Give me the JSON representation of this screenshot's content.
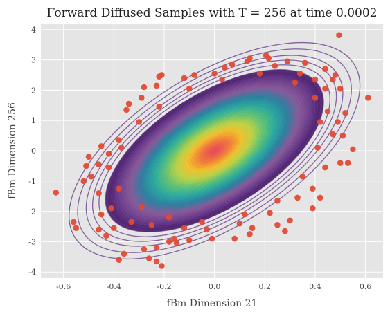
{
  "chart_data": {
    "type": "scatter",
    "title": "Forward Diffused Samples with T = 256 at time 0.0002",
    "xlabel": "fBm Dimension 21",
    "ylabel": "fBm Dimension 256",
    "xlim": [
      -0.69,
      0.67
    ],
    "ylim": [
      -4.2,
      4.2
    ],
    "xticks": [
      "-0.6",
      "-0.4",
      "-0.2",
      "0.0",
      "0.2",
      "0.4",
      "0.6"
    ],
    "xtick_values": [
      -0.6,
      -0.4,
      -0.2,
      0.0,
      0.2,
      0.4,
      0.6
    ],
    "yticks": [
      "-4",
      "-3",
      "-2",
      "-1",
      "0",
      "1",
      "2",
      "3",
      "4"
    ],
    "ytick_values": [
      -4,
      -3,
      -2,
      -1,
      0,
      1,
      2,
      3,
      4
    ],
    "grid": true,
    "background": "#e5e5e5",
    "point_color": "#e24a33",
    "density_center": [
      0.0,
      0.0
    ],
    "density_sx": 0.17,
    "density_sy": 1.05,
    "density_corr": 0.6,
    "colormap": [
      "#4a1e6c",
      "#6b3f8c",
      "#8c5a9a",
      "#2f7fa0",
      "#2aa7a0",
      "#5cc17a",
      "#b8d14a",
      "#f2c12e",
      "#f07c3a",
      "#e94e5a"
    ],
    "points": [
      [
        0.495,
        3.82
      ],
      [
        0.205,
        3.15
      ],
      [
        0.215,
        3.05
      ],
      [
        0.29,
        2.95
      ],
      [
        0.47,
        2.35
      ],
      [
        0.5,
        2.05
      ],
      [
        0.61,
        1.75
      ],
      [
        0.52,
        1.25
      ],
      [
        0.49,
        0.95
      ],
      [
        0.55,
        0.05
      ],
      [
        0.53,
        -0.4
      ],
      [
        0.5,
        -0.4
      ],
      [
        0.39,
        -1.25
      ],
      [
        0.42,
        -1.55
      ],
      [
        0.39,
        -1.9
      ],
      [
        0.3,
        -2.3
      ],
      [
        0.25,
        -2.45
      ],
      [
        0.15,
        -2.55
      ],
      [
        0.14,
        -2.75
      ],
      [
        0.08,
        -2.9
      ],
      [
        -0.01,
        -2.9
      ],
      [
        -0.1,
        -2.95
      ],
      [
        -0.16,
        -2.9
      ],
      [
        -0.18,
        -3.0
      ],
      [
        -0.23,
        -3.2
      ],
      [
        -0.28,
        -3.25
      ],
      [
        -0.26,
        -3.55
      ],
      [
        -0.23,
        -3.65
      ],
      [
        -0.21,
        -3.8
      ],
      [
        -0.38,
        -3.6
      ],
      [
        -0.36,
        -3.4
      ],
      [
        -0.43,
        -2.8
      ],
      [
        -0.4,
        -2.55
      ],
      [
        -0.46,
        -2.6
      ],
      [
        -0.56,
        -2.35
      ],
      [
        -0.55,
        -2.55
      ],
      [
        -0.63,
        -1.38
      ],
      [
        -0.51,
        -0.5
      ],
      [
        -0.5,
        -0.2
      ],
      [
        -0.45,
        0.15
      ],
      [
        -0.42,
        -0.1
      ],
      [
        -0.35,
        1.35
      ],
      [
        -0.34,
        1.55
      ],
      [
        -0.29,
        1.75
      ],
      [
        -0.23,
        2.15
      ],
      [
        -0.22,
        2.45
      ],
      [
        -0.21,
        2.5
      ],
      [
        -0.12,
        2.4
      ],
      [
        -0.08,
        2.5
      ],
      [
        0.0,
        2.55
      ],
      [
        0.04,
        2.75
      ],
      [
        0.07,
        2.85
      ],
      [
        0.14,
        3.05
      ],
      [
        0.24,
        2.8
      ],
      [
        0.34,
        2.55
      ],
      [
        0.4,
        2.35
      ],
      [
        0.44,
        2.05
      ],
      [
        0.45,
        1.3
      ],
      [
        0.47,
        0.55
      ],
      [
        0.44,
        -0.55
      ],
      [
        0.33,
        -1.55
      ],
      [
        0.22,
        -2.05
      ],
      [
        0.1,
        -2.4
      ],
      [
        -0.03,
        -2.6
      ],
      [
        -0.12,
        -2.55
      ],
      [
        -0.25,
        -2.45
      ],
      [
        -0.33,
        -2.35
      ],
      [
        -0.41,
        -1.9
      ],
      [
        -0.46,
        -1.4
      ],
      [
        -0.49,
        -0.85
      ],
      [
        -0.46,
        -0.45
      ],
      [
        -0.38,
        0.35
      ],
      [
        -0.3,
        0.95
      ],
      [
        -0.22,
        1.45
      ],
      [
        -0.1,
        2.05
      ],
      [
        0.03,
        2.35
      ],
      [
        0.18,
        2.55
      ],
      [
        0.32,
        2.25
      ],
      [
        0.4,
        1.75
      ],
      [
        0.42,
        0.95
      ],
      [
        0.41,
        0.1
      ],
      [
        0.35,
        -0.85
      ],
      [
        0.25,
        -1.65
      ],
      [
        0.12,
        -2.1
      ],
      [
        -0.05,
        -2.35
      ],
      [
        -0.18,
        -2.2
      ],
      [
        -0.29,
        -1.85
      ],
      [
        -0.38,
        -1.25
      ],
      [
        -0.42,
        -0.55
      ],
      [
        -0.37,
        0.1
      ],
      [
        0.44,
        2.7
      ],
      [
        0.48,
        2.5
      ],
      [
        -0.28,
        2.1
      ],
      [
        0.36,
        2.9
      ],
      [
        -0.45,
        -2.1
      ],
      [
        0.28,
        -2.65
      ],
      [
        0.13,
        2.95
      ],
      [
        -0.15,
        -3.05
      ],
      [
        0.51,
        0.5
      ],
      [
        -0.52,
        -1.0
      ]
    ]
  }
}
